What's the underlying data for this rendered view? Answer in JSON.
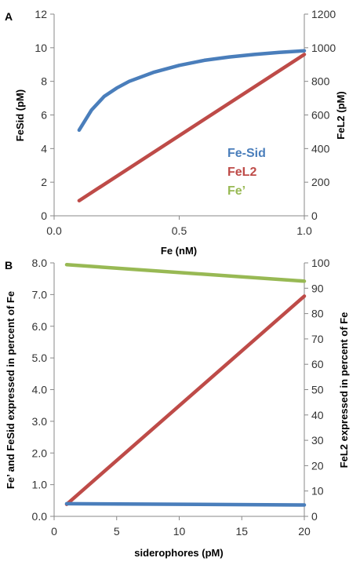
{
  "colors": {
    "fesid": "#4a7ebb",
    "fel2": "#be4b48",
    "fefree": "#98b954",
    "axis": "#888888",
    "text": "#333333"
  },
  "chart_data": [
    {
      "panel_label": "A",
      "type": "line",
      "xlabel": "Fe (nM)",
      "ylabel_left": "FeSid (pM)",
      "ylabel_right": "FeL2 (pM)",
      "xlim": [
        0,
        1
      ],
      "ylim_left": [
        0,
        12
      ],
      "ylim_right": [
        0,
        1200
      ],
      "x_ticks": [
        "0.0",
        "0.5",
        "1.0"
      ],
      "y_left_ticks": [
        "0",
        "2",
        "4",
        "6",
        "8",
        "10",
        "12"
      ],
      "y_right_ticks": [
        "0",
        "200",
        "400",
        "600",
        "800",
        "1000",
        "1200"
      ],
      "grid": false,
      "legend_position": "center-right",
      "legend": [
        {
          "label": "Fe-Sid",
          "color": "#4a7ebb"
        },
        {
          "label": "FeL2",
          "color": "#be4b48"
        },
        {
          "label": "Fe’",
          "color": "#98b954"
        }
      ],
      "series": [
        {
          "name": "Fe-Sid",
          "axis": "left",
          "color": "#4a7ebb",
          "x": [
            0.1,
            0.15,
            0.2,
            0.25,
            0.3,
            0.4,
            0.5,
            0.6,
            0.7,
            0.8,
            0.9,
            1.0
          ],
          "y": [
            5.1,
            6.3,
            7.1,
            7.6,
            8.0,
            8.55,
            8.95,
            9.25,
            9.45,
            9.6,
            9.72,
            9.82
          ]
        },
        {
          "name": "FeL2",
          "axis": "right",
          "color": "#be4b48",
          "x": [
            0.1,
            1.0
          ],
          "y": [
            90,
            960
          ]
        }
      ]
    },
    {
      "panel_label": "B",
      "type": "line",
      "xlabel": "siderophores (pM)",
      "ylabel_left": "Fe’ and FeSid  expressed in percent of Fe",
      "ylabel_right": "FeL2 expressed in percent of Fe",
      "xlim": [
        0,
        20
      ],
      "ylim_left": [
        0,
        8
      ],
      "ylim_right": [
        0,
        100
      ],
      "x_ticks": [
        "0",
        "5",
        "10",
        "15",
        "20"
      ],
      "y_left_ticks": [
        "0.0",
        "1.0",
        "2.0",
        "3.0",
        "4.0",
        "5.0",
        "6.0",
        "7.0",
        "8.0"
      ],
      "y_right_ticks": [
        "0",
        "10",
        "20",
        "30",
        "40",
        "50",
        "60",
        "70",
        "80",
        "90",
        "100"
      ],
      "grid": false,
      "series": [
        {
          "name": "Fe’",
          "axis": "right",
          "color": "#98b954",
          "x": [
            1,
            20
          ],
          "y": [
            99.3,
            92.8
          ]
        },
        {
          "name": "FeL2",
          "axis": "left",
          "color": "#be4b48",
          "x": [
            1,
            20
          ],
          "y": [
            0.38,
            6.95
          ]
        },
        {
          "name": "FeSid",
          "axis": "left",
          "color": "#4a7ebb",
          "x": [
            1,
            20
          ],
          "y": [
            0.4,
            0.36
          ]
        }
      ]
    }
  ]
}
